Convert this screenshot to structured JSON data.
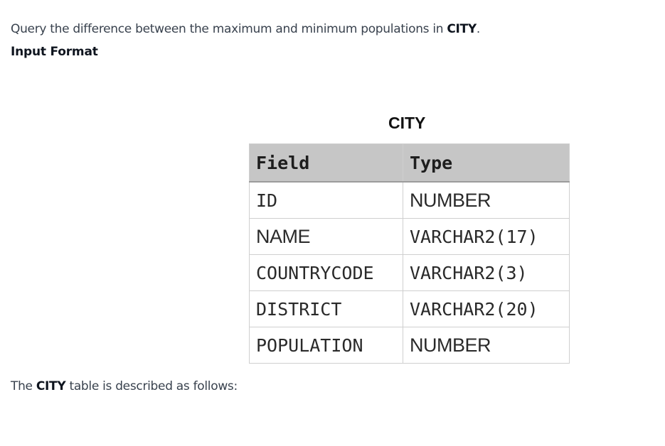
{
  "intro": {
    "before": "Query the difference between the maximum and minimum populations in ",
    "table": "CITY",
    "after": "."
  },
  "heading": "Input Format",
  "schema": {
    "caption": "CITY",
    "headers": [
      "Field",
      "Type"
    ],
    "rows": [
      {
        "field": "ID",
        "type": "NUMBER"
      },
      {
        "field": "NAME",
        "type": "VARCHAR2(17)"
      },
      {
        "field": "COUNTRYCODE",
        "type": "VARCHAR2(3)"
      },
      {
        "field": "DISTRICT",
        "type": "VARCHAR2(20)"
      },
      {
        "field": "POPULATION",
        "type": "NUMBER"
      }
    ]
  },
  "description": {
    "before": "The ",
    "table": "CITY",
    "after": " table is described as follows:"
  }
}
